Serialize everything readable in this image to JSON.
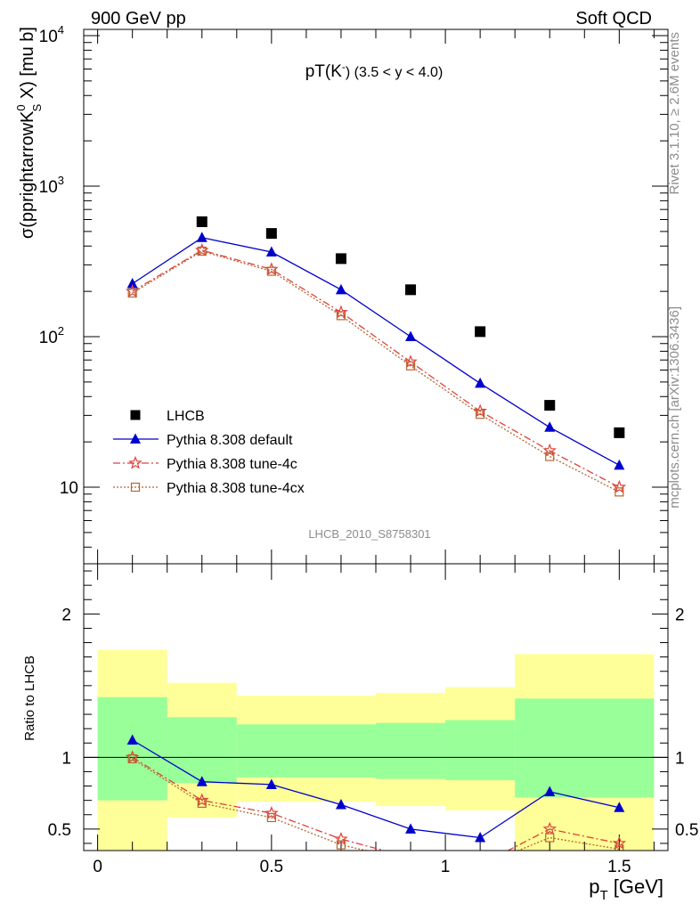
{
  "header": {
    "left": "900 GeV pp",
    "right": "Soft QCD"
  },
  "side_labels": {
    "top": "Rivet 3.1.10, ≥ 2.6M events",
    "bottom": "mcplots.cern.ch [arXiv:1306.3436]"
  },
  "chart_data": [
    {
      "type": "scatter",
      "panel": "main",
      "title": "pT(K⁻) (3.5 < y < 4.0)",
      "title_main": "pT(K",
      "title_sup": "-",
      "title_rest": ") (3.5 < y < 4.0)",
      "ylabel": "σ(pprightarrowK⁰ₛ X) [mu b]",
      "ylabel_main": "σ(pprightarrowK",
      "ylabel_sup": "0",
      "ylabel_sub": "S",
      "ylabel_rest": " X) [mu b]",
      "y_scale": "log",
      "ylim": [
        3.1,
        11000
      ],
      "xlim": [
        -0.04,
        1.64
      ],
      "y_tick_labels": [
        {
          "value": 10,
          "label": "10"
        },
        {
          "value": 100,
          "label": "10",
          "sup": "2"
        },
        {
          "value": 1000,
          "label": "10",
          "sup": "3"
        },
        {
          "value": 10000,
          "label": "10",
          "sup": "4"
        }
      ],
      "watermark": "LHCB_2010_S8758301",
      "legend_position": "bottom-left",
      "x": [
        0.1,
        0.3,
        0.5,
        0.7,
        0.9,
        1.1,
        1.3,
        1.5
      ],
      "series": [
        {
          "name": "LHCB",
          "marker": "square",
          "color": "#000000",
          "line": "none",
          "values": [
            null,
            580,
            485,
            330,
            205,
            108,
            35,
            23
          ]
        },
        {
          "name": "Pythia 8.308 default",
          "marker": "triangle",
          "color": "#0000cc",
          "line": "solid",
          "values": [
            225,
            455,
            365,
            205,
            100,
            49,
            25,
            14
          ]
        },
        {
          "name": "Pythia 8.308 tune-4c",
          "marker": "star",
          "color": "#e0403a",
          "line": "dashdot",
          "values": [
            200,
            375,
            280,
            145,
            68,
            32,
            17.5,
            10
          ]
        },
        {
          "name": "Pythia 8.308 tune-4cx",
          "marker": "open-square",
          "color": "#b8652e",
          "line": "dotted",
          "values": [
            195,
            370,
            272,
            138,
            64,
            30.5,
            16,
            9.3
          ]
        }
      ]
    },
    {
      "type": "line",
      "panel": "ratio",
      "ylabel": "Ratio to LHCB",
      "xlabel": "p_T [GeV]",
      "xlabel_main": "p",
      "xlabel_sub": "T",
      "xlabel_rest": " [GeV]",
      "xlim": [
        -0.04,
        1.64
      ],
      "ylim": [
        0.35,
        2.35
      ],
      "x_tick_labels": [
        {
          "value": 0,
          "label": "0"
        },
        {
          "value": 0.5,
          "label": "0.5"
        },
        {
          "value": 1,
          "label": "1"
        },
        {
          "value": 1.5,
          "label": "1.5"
        }
      ],
      "y_tick_labels": [
        {
          "value": 0.5,
          "label": "0.5"
        },
        {
          "value": 1,
          "label": "1"
        },
        {
          "value": 2,
          "label": "2"
        }
      ],
      "bands": [
        {
          "x0": 0.0,
          "x1": 0.2,
          "yellow": [
            0.35,
            1.75
          ],
          "green": [
            0.7,
            1.42
          ]
        },
        {
          "x0": 0.2,
          "x1": 0.4,
          "yellow": [
            0.58,
            1.52
          ],
          "green": [
            0.82,
            1.28
          ]
        },
        {
          "x0": 0.4,
          "x1": 0.8,
          "yellow": [
            0.69,
            1.43
          ],
          "green": [
            0.86,
            1.23
          ]
        },
        {
          "x0": 0.8,
          "x1": 1.0,
          "yellow": [
            0.66,
            1.45
          ],
          "green": [
            0.85,
            1.24
          ]
        },
        {
          "x0": 1.0,
          "x1": 1.2,
          "yellow": [
            0.63,
            1.49
          ],
          "green": [
            0.84,
            1.26
          ]
        },
        {
          "x0": 1.2,
          "x1": 1.6,
          "yellow": [
            0.35,
            1.72
          ],
          "green": [
            0.72,
            1.41
          ]
        }
      ],
      "reference": 1,
      "x": [
        0.1,
        0.3,
        0.5,
        0.7,
        0.9,
        1.1,
        1.3,
        1.5
      ],
      "series": [
        {
          "name": "Pythia 8.308 default",
          "marker": "triangle",
          "color": "#0000cc",
          "line": "solid",
          "values": [
            1.12,
            0.83,
            0.81,
            0.67,
            0.5,
            0.44,
            0.76,
            0.65
          ]
        },
        {
          "name": "Pythia 8.308 tune-4c",
          "marker": "star",
          "color": "#e0403a",
          "line": "dashdot",
          "values": [
            1.0,
            0.7,
            0.61,
            0.43,
            0.3,
            0.25,
            0.5,
            0.4
          ]
        },
        {
          "name": "Pythia 8.308 tune-4cx",
          "marker": "open-square",
          "color": "#b8652e",
          "line": "dotted",
          "values": [
            0.99,
            0.68,
            0.58,
            0.39,
            0.28,
            0.24,
            0.44,
            0.36
          ]
        }
      ]
    }
  ]
}
